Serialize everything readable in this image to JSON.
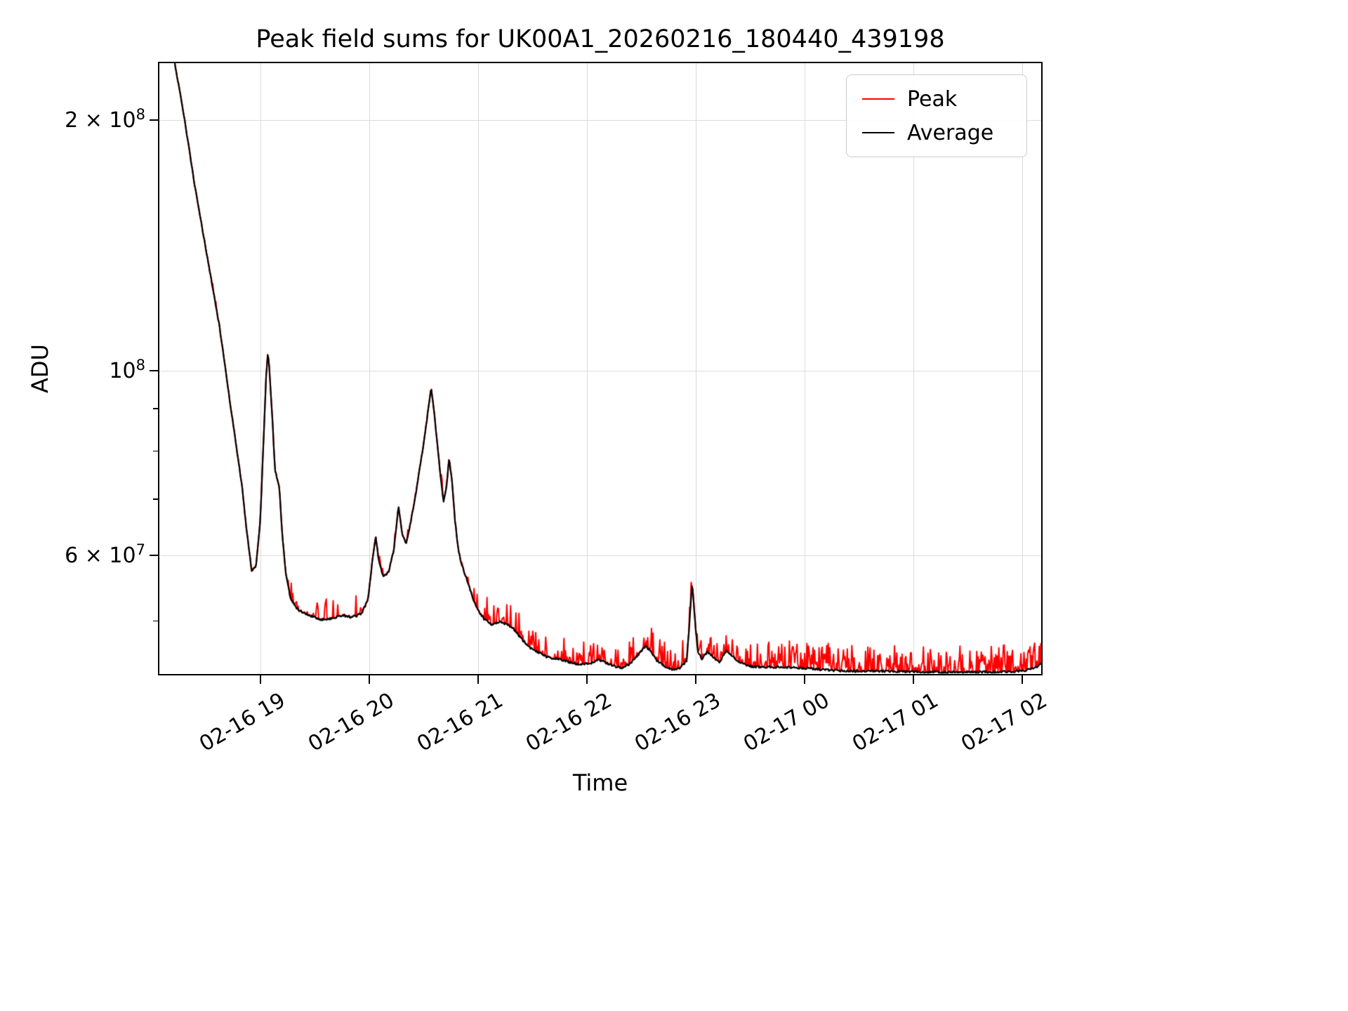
{
  "chart_data": {
    "type": "line",
    "title": "Peak field sums for UK00A1_20260216_180440_439198",
    "xlabel": "Time",
    "ylabel": "ADU",
    "yscale": "log",
    "grid": true,
    "xlim_hours": [
      18.06,
      26.19
    ],
    "ylim": [
      43000000.0,
      235000000.0
    ],
    "x_ticks": [
      {
        "hour": 19,
        "label": "02-16 19"
      },
      {
        "hour": 20,
        "label": "02-16 20"
      },
      {
        "hour": 21,
        "label": "02-16 21"
      },
      {
        "hour": 22,
        "label": "02-16 22"
      },
      {
        "hour": 23,
        "label": "02-16 23"
      },
      {
        "hour": 24,
        "label": "02-17 00"
      },
      {
        "hour": 25,
        "label": "02-17 01"
      },
      {
        "hour": 26,
        "label": "02-17 02"
      }
    ],
    "y_major_ticks": [
      {
        "value": 200000000.0,
        "mantissa": "2 × 10",
        "exp": "8"
      },
      {
        "value": 100000000.0,
        "mantissa": "10",
        "exp": "8"
      },
      {
        "value": 60000000.0,
        "mantissa": "6 × 10",
        "exp": "7"
      }
    ],
    "y_minor_ticks": [
      50000000.0,
      70000000.0,
      80000000.0,
      90000000.0
    ],
    "legend": {
      "position": "upper right",
      "entries": [
        {
          "label": "Peak",
          "color": "#ff0000"
        },
        {
          "label": "Average",
          "color": "#000000"
        }
      ]
    },
    "series": [
      {
        "name": "Average",
        "color": "#000000",
        "anchors_t_hours_value_adu": [
          [
            18.06,
            242000000.0
          ],
          [
            18.21,
            236000000.0
          ],
          [
            18.3,
            202000000.0
          ],
          [
            18.4,
            166000000.0
          ],
          [
            18.5,
            140000000.0
          ],
          [
            18.58,
            122000000.0
          ],
          [
            18.62,
            114000000.0
          ],
          [
            18.66,
            105000000.0
          ],
          [
            18.72,
            92000000.0
          ],
          [
            18.78,
            81000000.0
          ],
          [
            18.83,
            73000000.0
          ],
          [
            18.87,
            65000000.0
          ],
          [
            18.92,
            57500000.0
          ],
          [
            18.96,
            58000000.0
          ],
          [
            19.0,
            66000000.0
          ],
          [
            19.03,
            82000000.0
          ],
          [
            19.055,
            99000000.0
          ],
          [
            19.07,
            105000000.0
          ],
          [
            19.085,
            100000000.0
          ],
          [
            19.11,
            88000000.0
          ],
          [
            19.135,
            76000000.0
          ],
          [
            19.16,
            73500000.0
          ],
          [
            19.175,
            72500000.0
          ],
          [
            19.2,
            64000000.0
          ],
          [
            19.235,
            57000000.0
          ],
          [
            19.28,
            53000000.0
          ],
          [
            19.35,
            51500000.0
          ],
          [
            19.45,
            50800000.0
          ],
          [
            19.55,
            50200000.0
          ],
          [
            19.65,
            50300000.0
          ],
          [
            19.75,
            50800000.0
          ],
          [
            19.85,
            50500000.0
          ],
          [
            19.93,
            51000000.0
          ],
          [
            19.99,
            53000000.0
          ],
          [
            20.03,
            59000000.0
          ],
          [
            20.06,
            63200000.0
          ],
          [
            20.09,
            59000000.0
          ],
          [
            20.13,
            56500000.0
          ],
          [
            20.18,
            57200000.0
          ],
          [
            20.23,
            61000000.0
          ],
          [
            20.27,
            68800000.0
          ],
          [
            20.305,
            63500000.0
          ],
          [
            20.34,
            61800000.0
          ],
          [
            20.38,
            65500000.0
          ],
          [
            20.43,
            71000000.0
          ],
          [
            20.47,
            77000000.0
          ],
          [
            20.51,
            83000000.0
          ],
          [
            20.545,
            90000000.0
          ],
          [
            20.57,
            95200000.0
          ],
          [
            20.59,
            91000000.0
          ],
          [
            20.62,
            83500000.0
          ],
          [
            20.655,
            75000000.0
          ],
          [
            20.685,
            69500000.0
          ],
          [
            20.71,
            72000000.0
          ],
          [
            20.735,
            78500000.0
          ],
          [
            20.76,
            74000000.0
          ],
          [
            20.79,
            66000000.0
          ],
          [
            20.82,
            61000000.0
          ],
          [
            20.85,
            58500000.0
          ],
          [
            20.88,
            57000000.0
          ],
          [
            20.92,
            55000000.0
          ],
          [
            20.96,
            53000000.0
          ],
          [
            21.0,
            51500000.0
          ],
          [
            21.06,
            50200000.0
          ],
          [
            21.13,
            49500000.0
          ],
          [
            21.2,
            49800000.0
          ],
          [
            21.27,
            49500000.0
          ],
          [
            21.34,
            48700000.0
          ],
          [
            21.41,
            47400000.0
          ],
          [
            21.48,
            46400000.0
          ],
          [
            21.56,
            45800000.0
          ],
          [
            21.64,
            45200000.0
          ],
          [
            21.74,
            45000000.0
          ],
          [
            21.84,
            44600000.0
          ],
          [
            21.94,
            44300000.0
          ],
          [
            22.04,
            44500000.0
          ],
          [
            22.11,
            44900000.0
          ],
          [
            22.18,
            44500000.0
          ],
          [
            22.26,
            44100000.0
          ],
          [
            22.33,
            43900000.0
          ],
          [
            22.4,
            44400000.0
          ],
          [
            22.47,
            45500000.0
          ],
          [
            22.54,
            46600000.0
          ],
          [
            22.59,
            46000000.0
          ],
          [
            22.65,
            44700000.0
          ],
          [
            22.72,
            44100000.0
          ],
          [
            22.79,
            43700000.0
          ],
          [
            22.86,
            43900000.0
          ],
          [
            22.92,
            44800000.0
          ],
          [
            22.955,
            52000000.0
          ],
          [
            22.97,
            55600000.0
          ],
          [
            22.99,
            51000000.0
          ],
          [
            23.02,
            46000000.0
          ],
          [
            23.06,
            45000000.0
          ],
          [
            23.11,
            45900000.0
          ],
          [
            23.16,
            45200000.0
          ],
          [
            23.22,
            44600000.0
          ],
          [
            23.285,
            46100000.0
          ],
          [
            23.33,
            45400000.0
          ],
          [
            23.4,
            44600000.0
          ],
          [
            23.5,
            44100000.0
          ],
          [
            23.62,
            44000000.0
          ],
          [
            23.8,
            44000000.0
          ],
          [
            24.0,
            43900000.0
          ],
          [
            24.25,
            43600000.0
          ],
          [
            24.5,
            43500000.0
          ],
          [
            24.8,
            43500000.0
          ],
          [
            25.1,
            43400000.0
          ],
          [
            25.4,
            43400000.0
          ],
          [
            25.7,
            43400000.0
          ],
          [
            26.0,
            43500000.0
          ],
          [
            26.12,
            43900000.0
          ],
          [
            26.19,
            44600000.0
          ]
        ]
      },
      {
        "name": "Peak",
        "color": "#ff0000",
        "definition": "average_plus_upward_spikes",
        "spike_regions": [
          {
            "t_start": 18.25,
            "t_end": 19.2,
            "probability": 0.05,
            "max_rel_amplitude": 0.022
          },
          {
            "t_start": 19.2,
            "t_end": 19.99,
            "probability": 0.22,
            "max_rel_amplitude": 0.06
          },
          {
            "t_start": 19.99,
            "t_end": 20.92,
            "probability": 0.12,
            "max_rel_amplitude": 0.03
          },
          {
            "t_start": 20.92,
            "t_end": 22.9,
            "probability": 0.34,
            "max_rel_amplitude": 0.07
          },
          {
            "t_start": 22.9,
            "t_end": 23.5,
            "probability": 0.38,
            "max_rel_amplitude": 0.055
          },
          {
            "t_start": 23.5,
            "t_end": 26.19,
            "probability": 0.52,
            "max_rel_amplitude": 0.075
          }
        ]
      }
    ],
    "noise_seed": 42,
    "sample_step_hours": 0.007
  }
}
